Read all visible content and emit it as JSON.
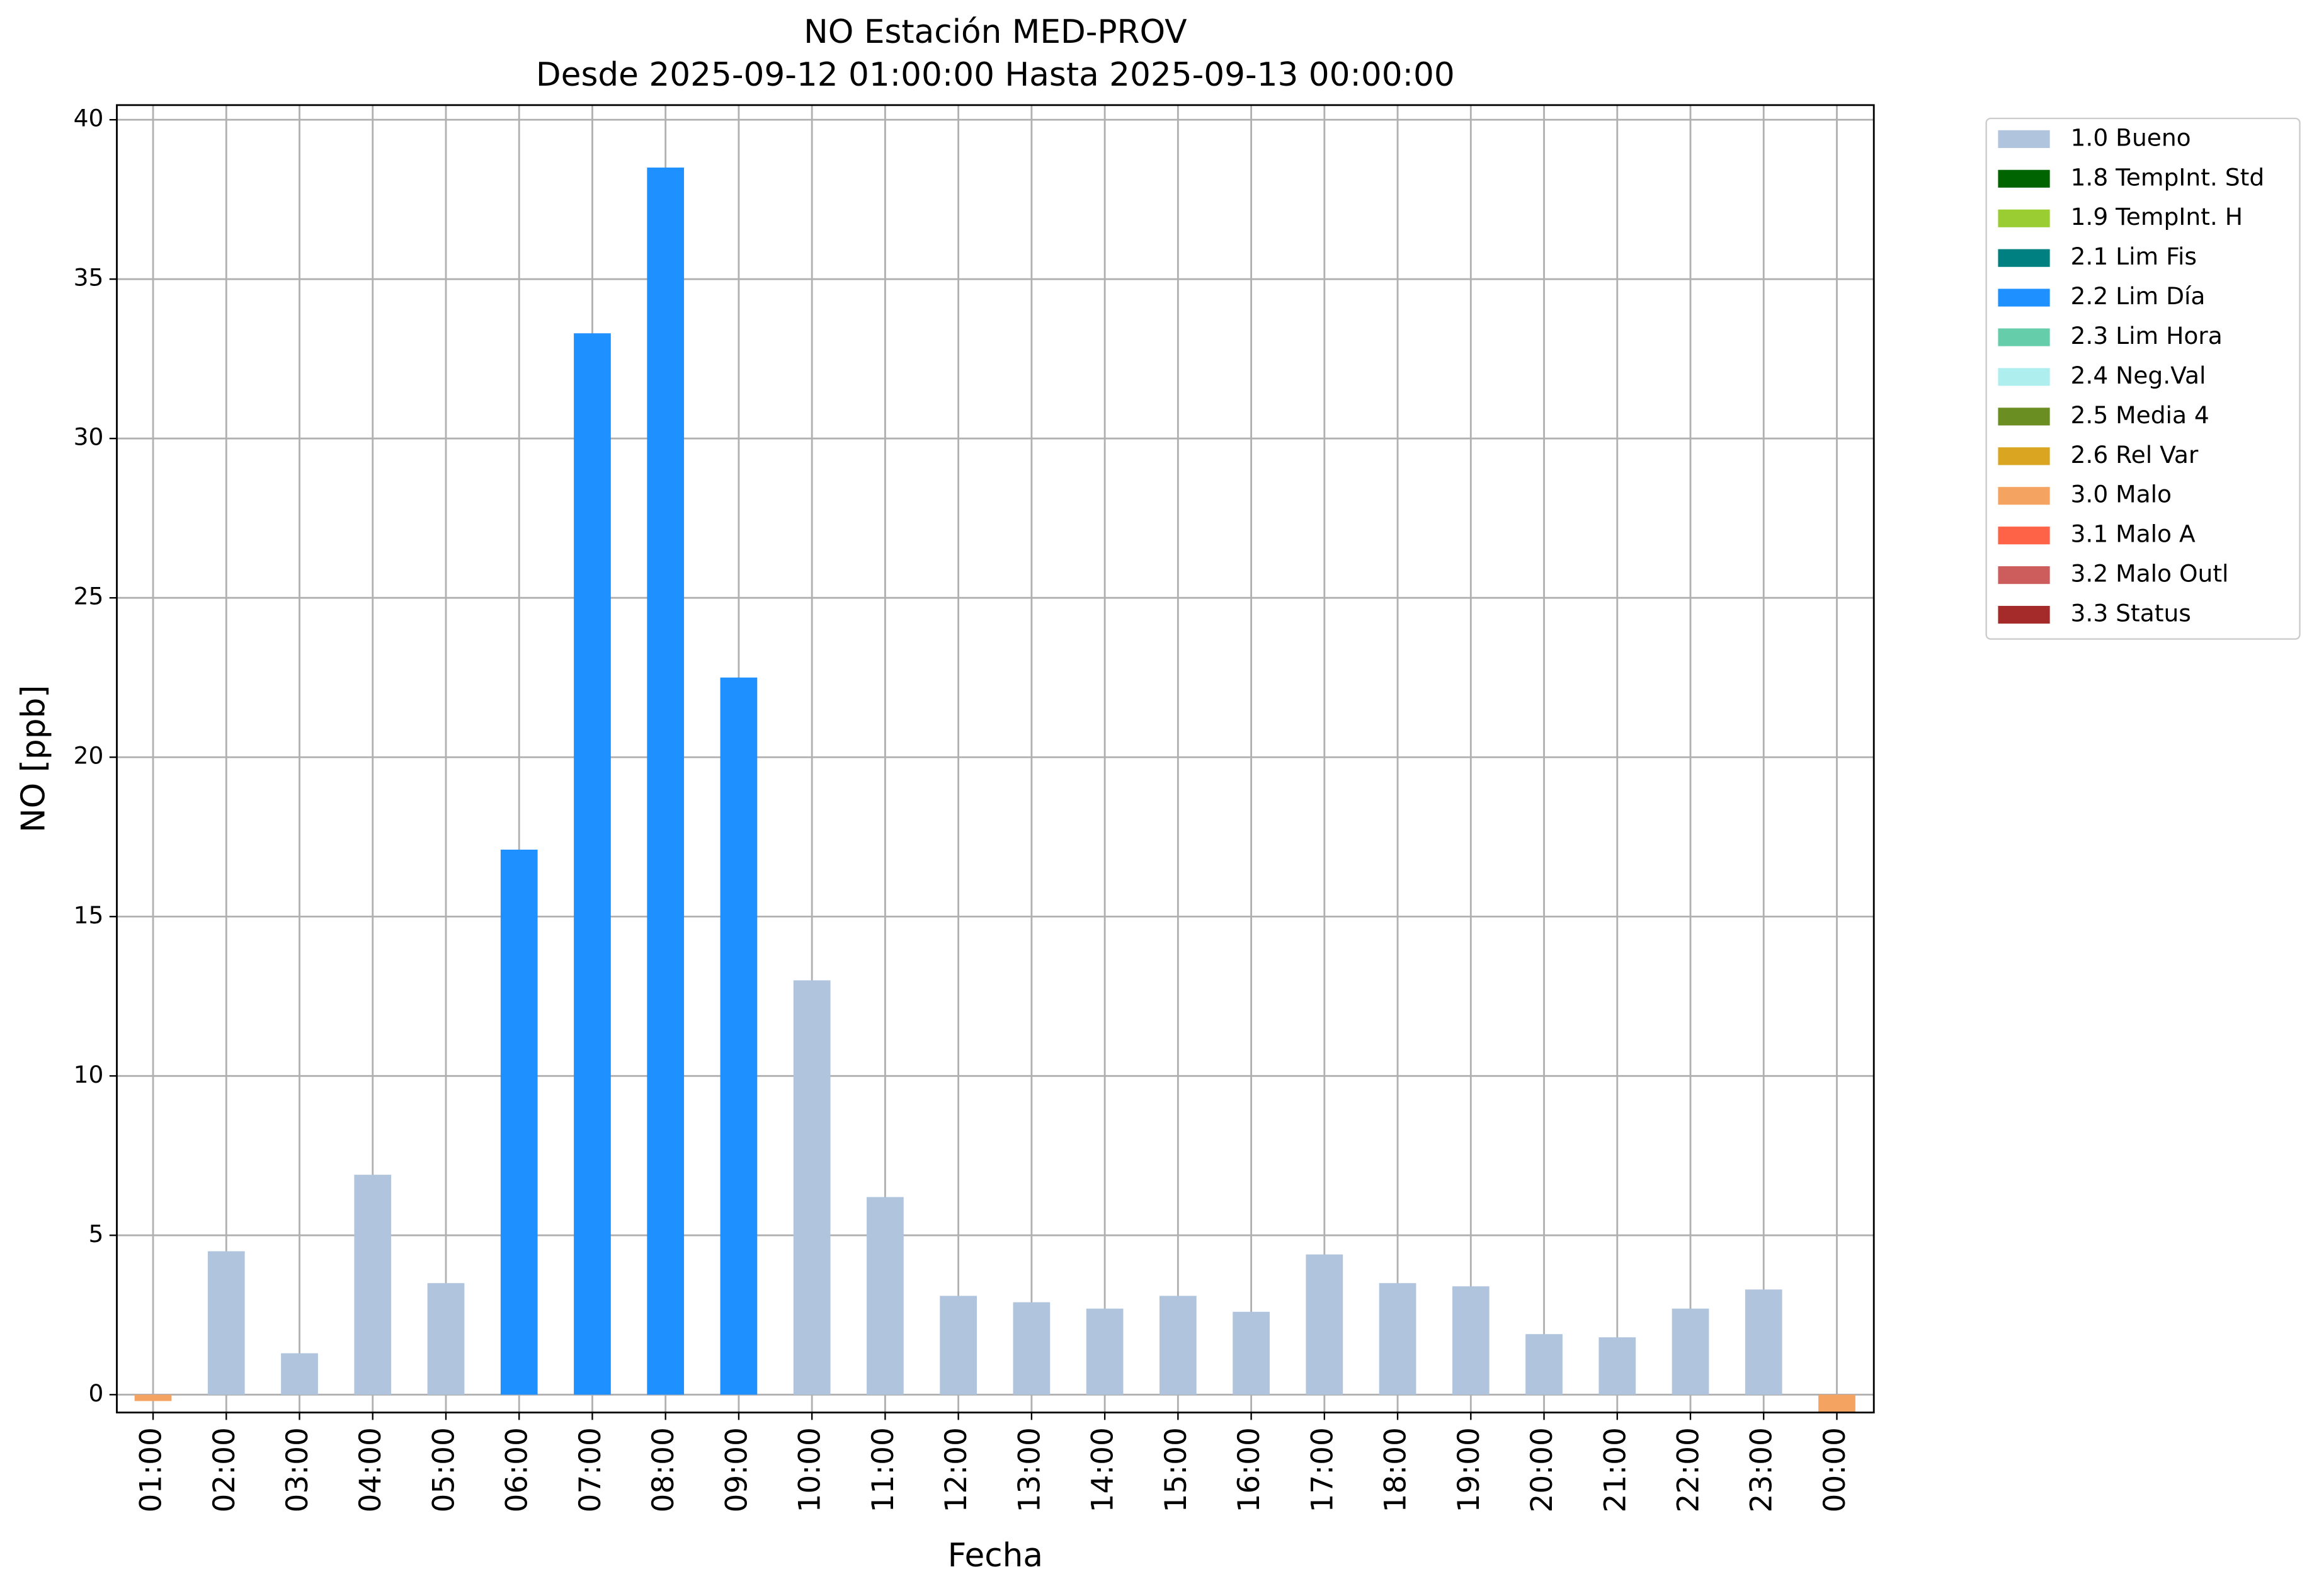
{
  "chart_data": {
    "type": "bar",
    "title": "NO Estación MED-PROV",
    "subtitle": "Desde 2025-09-12 01:00:00 Hasta 2025-09-13 00:00:00",
    "x_label": "Fecha",
    "y_label": "NO [ppb]",
    "categories": [
      "01:00",
      "02:00",
      "03:00",
      "04:00",
      "05:00",
      "06:00",
      "07:00",
      "08:00",
      "09:00",
      "10:00",
      "11:00",
      "12:00",
      "13:00",
      "14:00",
      "15:00",
      "16:00",
      "17:00",
      "18:00",
      "19:00",
      "20:00",
      "21:00",
      "22:00",
      "23:00",
      "00:00"
    ],
    "series": [
      {
        "name": "1.0 Bueno",
        "color": "#b0c4de",
        "values": [
          null,
          4.5,
          1.3,
          6.9,
          3.5,
          null,
          null,
          null,
          null,
          13.0,
          6.2,
          3.1,
          2.9,
          2.7,
          3.1,
          2.6,
          4.4,
          3.5,
          3.4,
          1.9,
          1.8,
          2.7,
          3.3,
          null
        ]
      },
      {
        "name": "1.8 TempInt. Std",
        "color": "#006400",
        "values": [
          null,
          null,
          null,
          null,
          null,
          null,
          null,
          null,
          null,
          null,
          null,
          null,
          null,
          null,
          null,
          null,
          null,
          null,
          null,
          null,
          null,
          null,
          null,
          null
        ]
      },
      {
        "name": "1.9 TempInt. H",
        "color": "#9acd32",
        "values": [
          null,
          null,
          null,
          null,
          null,
          null,
          null,
          null,
          null,
          null,
          null,
          null,
          null,
          null,
          null,
          null,
          null,
          null,
          null,
          null,
          null,
          null,
          null,
          null
        ]
      },
      {
        "name": "2.1 Lim Fis",
        "color": "#008080",
        "values": [
          null,
          null,
          null,
          null,
          null,
          null,
          null,
          null,
          null,
          null,
          null,
          null,
          null,
          null,
          null,
          null,
          null,
          null,
          null,
          null,
          null,
          null,
          null,
          null
        ]
      },
      {
        "name": "2.2 Lim Día",
        "color": "#1e90ff",
        "values": [
          null,
          null,
          null,
          null,
          null,
          17.1,
          33.3,
          38.5,
          22.5,
          null,
          null,
          null,
          null,
          null,
          null,
          null,
          null,
          null,
          null,
          null,
          null,
          null,
          null,
          null
        ]
      },
      {
        "name": "2.3 Lim Hora",
        "color": "#66cdaa",
        "values": [
          null,
          null,
          null,
          null,
          null,
          null,
          null,
          null,
          null,
          null,
          null,
          null,
          null,
          null,
          null,
          null,
          null,
          null,
          null,
          null,
          null,
          null,
          null,
          null
        ]
      },
      {
        "name": "2.4 Neg.Val",
        "color": "#afeeee",
        "values": [
          null,
          null,
          null,
          null,
          null,
          null,
          null,
          null,
          null,
          null,
          null,
          null,
          null,
          null,
          null,
          null,
          null,
          null,
          null,
          null,
          null,
          null,
          null,
          null
        ]
      },
      {
        "name": "2.5 Media 4",
        "color": "#6b8e23",
        "values": [
          null,
          null,
          null,
          null,
          null,
          null,
          null,
          null,
          null,
          null,
          null,
          null,
          null,
          null,
          null,
          null,
          null,
          null,
          null,
          null,
          null,
          null,
          null,
          null
        ]
      },
      {
        "name": "2.6 Rel Var",
        "color": "#daa520",
        "values": [
          null,
          null,
          null,
          null,
          null,
          null,
          null,
          null,
          null,
          null,
          null,
          null,
          null,
          null,
          null,
          null,
          null,
          null,
          null,
          null,
          null,
          null,
          null,
          null
        ]
      },
      {
        "name": "3.0 Malo",
        "color": "#f4a460",
        "values": [
          -0.2,
          null,
          null,
          null,
          null,
          null,
          null,
          null,
          null,
          null,
          null,
          null,
          null,
          null,
          null,
          null,
          null,
          null,
          null,
          null,
          null,
          null,
          null,
          -0.6
        ]
      },
      {
        "name": "3.1 Malo A",
        "color": "#ff6347",
        "values": [
          null,
          null,
          null,
          null,
          null,
          null,
          null,
          null,
          null,
          null,
          null,
          null,
          null,
          null,
          null,
          null,
          null,
          null,
          null,
          null,
          null,
          null,
          null,
          null
        ]
      },
      {
        "name": "3.2 Malo Outl",
        "color": "#cd5c5c",
        "values": [
          null,
          null,
          null,
          null,
          null,
          null,
          null,
          null,
          null,
          null,
          null,
          null,
          null,
          null,
          null,
          null,
          null,
          null,
          null,
          null,
          null,
          null,
          null,
          null
        ]
      },
      {
        "name": "3.3 Status",
        "color": "#a52a2a",
        "values": [
          null,
          null,
          null,
          null,
          null,
          null,
          null,
          null,
          null,
          null,
          null,
          null,
          null,
          null,
          null,
          null,
          null,
          null,
          null,
          null,
          null,
          null,
          null,
          null
        ]
      }
    ],
    "ylim": [
      -0.56,
      40.46
    ],
    "yticks": [
      0,
      5,
      10,
      15,
      20,
      25,
      30,
      35,
      40
    ],
    "grid": true,
    "legend": "upper right outside"
  }
}
